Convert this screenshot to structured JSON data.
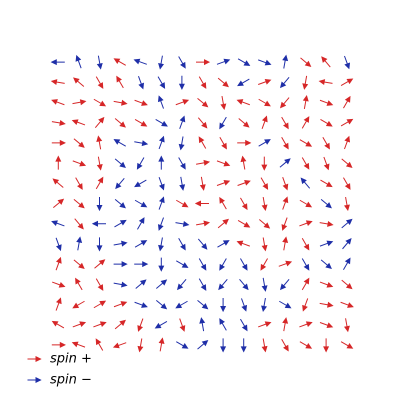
{
  "chart_data": {
    "type": "quiver",
    "series": [
      {
        "name": "spin +",
        "color": "#d62728",
        "spin": 1
      },
      {
        "name": "spin −",
        "color": "#1f2fa8",
        "spin": -1
      }
    ],
    "x": [
      0,
      1,
      2,
      3,
      4,
      5,
      6,
      7,
      8,
      9,
      10,
      11,
      12,
      13,
      14
    ],
    "y": [
      14,
      13,
      12,
      11,
      10,
      9,
      8,
      7,
      6,
      5,
      4,
      3,
      2,
      1,
      0
    ],
    "xlim": [
      -0.5,
      14.5
    ],
    "ylim": [
      -0.5,
      14.5
    ],
    "angle": [
      [
        180,
        110,
        -80,
        150,
        160,
        -100,
        -60,
        0,
        20,
        -30,
        -20,
        80,
        -40,
        130,
        -70
      ],
      [
        170,
        140,
        -60,
        120,
        -70,
        -60,
        -90,
        -60,
        -40,
        -150,
        20,
        -130,
        -100,
        170,
        30
      ],
      [
        160,
        10,
        -30,
        -10,
        -20,
        110,
        20,
        -40,
        -80,
        160,
        -30,
        -130,
        80,
        -20,
        60
      ],
      [
        -10,
        160,
        50,
        -40,
        -30,
        -30,
        70,
        -50,
        -120,
        -40,
        70,
        -60,
        60,
        -30,
        30
      ],
      [
        0,
        -40,
        100,
        150,
        -10,
        70,
        -100,
        120,
        -60,
        0,
        30,
        -60,
        -30,
        -60,
        70
      ],
      [
        90,
        -20,
        -80,
        -40,
        -120,
        90,
        -60,
        10,
        -20,
        100,
        -90,
        40,
        -60,
        -70,
        -40
      ],
      [
        140,
        -60,
        60,
        -130,
        -150,
        -70,
        -80,
        -80,
        20,
        20,
        -60,
        -70,
        130,
        -30,
        -60
      ],
      [
        40,
        -40,
        -90,
        -40,
        -30,
        70,
        -30,
        180,
        120,
        -60,
        -80,
        70,
        -30,
        -40,
        -80
      ],
      [
        160,
        -50,
        -180,
        30,
        60,
        -110,
        -10,
        10,
        40,
        -30,
        -40,
        -110,
        20,
        -10,
        40
      ],
      [
        -70,
        80,
        -90,
        10,
        30,
        -100,
        -60,
        -50,
        30,
        160,
        -80,
        80,
        -60,
        20,
        50
      ],
      [
        70,
        -40,
        40,
        0,
        0,
        -90,
        -30,
        -60,
        -120,
        -60,
        -120,
        20,
        -60,
        -40,
        60
      ],
      [
        -20,
        120,
        -60,
        -10,
        40,
        40,
        -130,
        -60,
        -130,
        -50,
        -80,
        -130,
        60,
        -20,
        -40
      ],
      [
        70,
        -150,
        30,
        20,
        -20,
        -40,
        -150,
        -40,
        -90,
        -70,
        -100,
        -30,
        -110,
        -10,
        -20
      ],
      [
        150,
        20,
        20,
        40,
        -110,
        -150,
        -70,
        100,
        120,
        -60,
        20,
        80,
        20,
        -20,
        -80
      ],
      [
        0,
        160,
        120,
        -160,
        -100,
        80,
        -30,
        40,
        -90,
        -90,
        -80,
        -60,
        -30,
        -90,
        -30
      ]
    ],
    "spin": [
      [
        -1,
        -1,
        -1,
        1,
        -1,
        -1,
        -1,
        1,
        -1,
        -1,
        -1,
        -1,
        1,
        1,
        -1
      ],
      [
        1,
        1,
        1,
        1,
        -1,
        -1,
        -1,
        1,
        1,
        -1,
        1,
        -1,
        1,
        1,
        1
      ],
      [
        1,
        1,
        1,
        1,
        1,
        -1,
        1,
        1,
        1,
        1,
        1,
        1,
        1,
        1,
        1
      ],
      [
        1,
        1,
        1,
        1,
        1,
        -1,
        -1,
        1,
        -1,
        1,
        1,
        1,
        1,
        1,
        1
      ],
      [
        1,
        1,
        1,
        -1,
        -1,
        -1,
        -1,
        1,
        1,
        1,
        -1,
        1,
        1,
        1,
        1
      ],
      [
        1,
        1,
        1,
        -1,
        -1,
        -1,
        -1,
        1,
        1,
        1,
        1,
        -1,
        1,
        1,
        1
      ],
      [
        1,
        1,
        1,
        -1,
        -1,
        -1,
        -1,
        1,
        1,
        1,
        1,
        1,
        -1,
        1,
        1
      ],
      [
        1,
        1,
        -1,
        -1,
        -1,
        -1,
        1,
        1,
        1,
        1,
        1,
        1,
        1,
        -1,
        1
      ],
      [
        -1,
        1,
        -1,
        -1,
        -1,
        -1,
        -1,
        1,
        1,
        1,
        1,
        1,
        1,
        1,
        -1
      ],
      [
        -1,
        -1,
        -1,
        -1,
        -1,
        -1,
        -1,
        -1,
        -1,
        1,
        1,
        1,
        1,
        -1,
        -1
      ],
      [
        1,
        1,
        1,
        -1,
        -1,
        -1,
        -1,
        -1,
        -1,
        -1,
        1,
        1,
        -1,
        -1,
        -1
      ],
      [
        1,
        1,
        1,
        -1,
        -1,
        -1,
        -1,
        -1,
        -1,
        -1,
        -1,
        -1,
        1,
        1,
        1
      ],
      [
        1,
        1,
        1,
        1,
        -1,
        -1,
        -1,
        -1,
        -1,
        -1,
        -1,
        -1,
        1,
        1,
        1
      ],
      [
        1,
        1,
        1,
        1,
        1,
        -1,
        1,
        -1,
        -1,
        -1,
        1,
        1,
        1,
        1,
        1
      ],
      [
        1,
        1,
        1,
        1,
        1,
        1,
        -1,
        -1,
        -1,
        -1,
        1,
        1,
        1,
        1,
        1
      ]
    ]
  }
}
